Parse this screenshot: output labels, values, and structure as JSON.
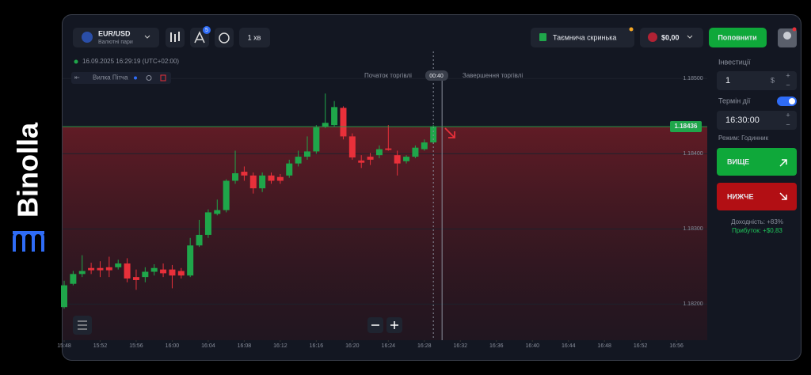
{
  "brand": {
    "name": "Binolla"
  },
  "header": {
    "asset": "EUR/USD",
    "asset_group": "Валютні пари",
    "tools_badge": "5",
    "timeframe": "1 хв",
    "mystery_box": "Таємнича скринька",
    "balance": "$0,00",
    "deposit": "Поповнити"
  },
  "chart": {
    "type": "candlestick",
    "datetime": "16.09.2025 16:29:19 (UTC+02:00)",
    "drawing_tool": "Вилка Пітча",
    "trade_start": "Початок торгівлі",
    "trade_end": "Завершення торгівлі",
    "timer": "00:40",
    "ylim": [
      1.18152,
      1.18536
    ],
    "yticks": [
      {
        "value": 1.185,
        "label": "1.18500"
      },
      {
        "value": 1.184,
        "label": "1.18400"
      },
      {
        "value": 1.183,
        "label": "1.18300"
      },
      {
        "value": 1.182,
        "label": "1.18200"
      }
    ],
    "current_price": {
      "value": 1.18436,
      "label": "1.18436"
    },
    "xticks": [
      "15:48",
      "15:52",
      "15:56",
      "16:00",
      "16:04",
      "16:08",
      "16:12",
      "16:16",
      "16:20",
      "16:24",
      "16:28",
      "16:32",
      "16:36",
      "16:40",
      "16:44",
      "16:48",
      "16:52",
      "16:56"
    ],
    "up_color": "#1fa64a",
    "down_color": "#e8303a",
    "open": [
      1.18196,
      1.18227,
      1.1824,
      1.18248,
      1.18248,
      1.18249,
      1.18249,
      1.18254,
      1.18236,
      1.18236,
      1.18243,
      1.18246,
      1.18246,
      1.18244,
      1.18238,
      1.18278,
      1.18292,
      1.1832,
      1.18325,
      1.18364,
      1.18376,
      1.18371,
      1.18354,
      1.18371,
      1.18369,
      1.18371,
      1.18387,
      1.18396,
      1.18403,
      1.18436,
      1.18438,
      1.18461,
      1.18423,
      1.18391,
      1.18396,
      1.18398,
      1.18407,
      1.18398,
      1.1839,
      1.18396,
      1.18406,
      1.18415
    ],
    "high": [
      1.18231,
      1.18244,
      1.18265,
      1.18255,
      1.18257,
      1.18263,
      1.18259,
      1.18261,
      1.18246,
      1.18249,
      1.18253,
      1.18254,
      1.18252,
      1.18248,
      1.18288,
      1.18312,
      1.18326,
      1.18339,
      1.18366,
      1.18404,
      1.18383,
      1.18375,
      1.18375,
      1.18375,
      1.18373,
      1.18392,
      1.18404,
      1.18423,
      1.18438,
      1.1848,
      1.1847,
      1.18463,
      1.18427,
      1.18398,
      1.18401,
      1.18411,
      1.18438,
      1.18404,
      1.18398,
      1.18411,
      1.18419,
      1.18438
    ],
    "low": [
      1.18194,
      1.18225,
      1.18236,
      1.1824,
      1.18236,
      1.18236,
      1.18246,
      1.18229,
      1.18219,
      1.18229,
      1.18238,
      1.18236,
      1.18221,
      1.18234,
      1.18236,
      1.18276,
      1.18288,
      1.18318,
      1.18322,
      1.1836,
      1.18364,
      1.18347,
      1.18349,
      1.1836,
      1.1836,
      1.18368,
      1.18383,
      1.18392,
      1.184,
      1.18434,
      1.18436,
      1.18419,
      1.18392,
      1.18381,
      1.18385,
      1.18394,
      1.18404,
      1.18371,
      1.18387,
      1.18394,
      1.18404,
      1.18413
    ],
    "close": [
      1.18225,
      1.1824,
      1.18244,
      1.18245,
      1.18245,
      1.18245,
      1.18254,
      1.18234,
      1.18232,
      1.18243,
      1.18248,
      1.18241,
      1.18238,
      1.18238,
      1.18278,
      1.18292,
      1.18322,
      1.18325,
      1.18364,
      1.18374,
      1.18371,
      1.18354,
      1.18371,
      1.18364,
      1.18364,
      1.18387,
      1.18396,
      1.18403,
      1.18435,
      1.18441,
      1.18462,
      1.18423,
      1.18395,
      1.18388,
      1.18392,
      1.18406,
      1.18405,
      1.18387,
      1.18396,
      1.18408,
      1.18415,
      1.18436
    ]
  },
  "sidebar": {
    "investment_label": "Інвестиції",
    "investment": "1",
    "currency": "$",
    "expiry_label": "Термін дії",
    "expiry": "16:30:00",
    "mode": "Режим: Годинник",
    "higher": "ВИЩЕ",
    "lower": "НИЖЧЕ",
    "payout": "Доходність: +83%",
    "profit": "Прибуток: +$0,83"
  }
}
